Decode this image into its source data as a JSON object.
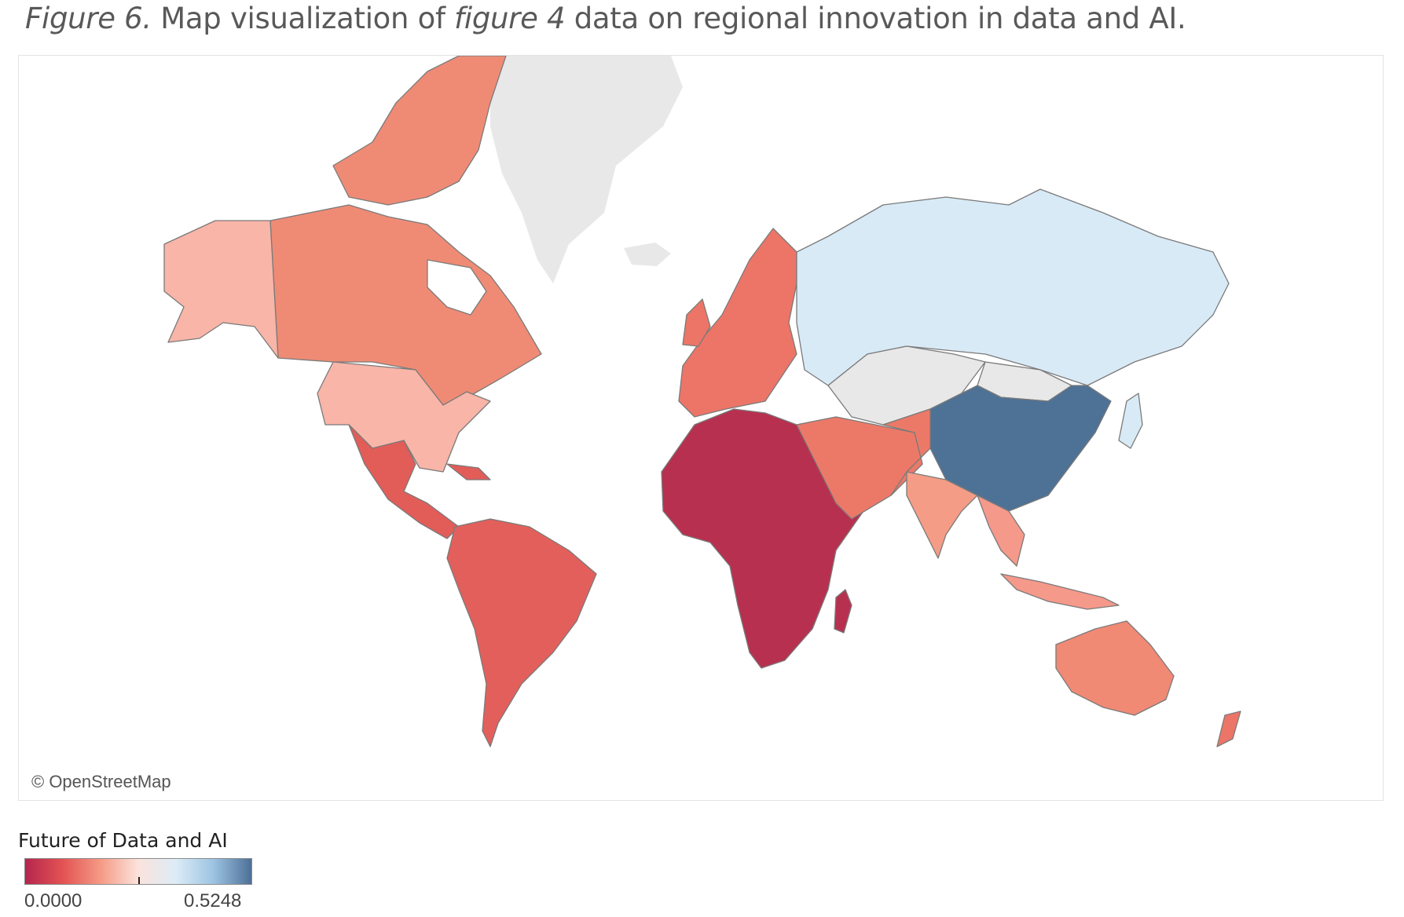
{
  "caption": {
    "figure_label": "Figure 6.",
    "text_before": " Map visualization of ",
    "figure_ref": "figure 4",
    "text_after": " data on regional innovation in data and AI."
  },
  "map": {
    "attribution": "© OpenStreetMap",
    "background_color": "#ffffff",
    "no_data_color": "#e8e8e8"
  },
  "legend": {
    "title": "Future of Data and AI",
    "min_label": "0.0000",
    "max_label": "0.5248",
    "min_value": 0.0,
    "max_value": 0.5248,
    "colors": [
      "#b5264d",
      "#e35353",
      "#f59a85",
      "#fbe3dc",
      "#dcecf7",
      "#9cc3e2",
      "#4d6f97"
    ]
  },
  "chart_data": {
    "type": "choropleth",
    "color_scale": {
      "min": 0.0,
      "max": 0.5248
    },
    "regions": [
      {
        "region": "Canada",
        "color": "#ef8b75"
      },
      {
        "region": "Alaska",
        "color": "#f8b5a8"
      },
      {
        "region": "United States",
        "color": "#f8b5a8"
      },
      {
        "region": "Mexico",
        "color": "#e25c58"
      },
      {
        "region": "Central America",
        "color": "#e25c58"
      },
      {
        "region": "South America",
        "color": "#e35f5b"
      },
      {
        "region": "Europe",
        "color": "#ec7567"
      },
      {
        "region": "Africa",
        "color": "#b8304f"
      },
      {
        "region": "Madagascar",
        "color": "#b8304f"
      },
      {
        "region": "Middle East",
        "color": "#ec7968"
      },
      {
        "region": "Russia",
        "color": "#d8eaf6"
      },
      {
        "region": "China",
        "color": "#4e7196"
      },
      {
        "region": "India",
        "color": "#f59c87"
      },
      {
        "region": "Southeast Asia",
        "color": "#f5998a"
      },
      {
        "region": "Australia",
        "color": "#f08a75"
      },
      {
        "region": "New Zealand",
        "color": "#ec7567"
      },
      {
        "region": "Central Asia",
        "color": "#e8e8e8"
      },
      {
        "region": "Greenland",
        "color": "#e8e8e8"
      }
    ]
  }
}
